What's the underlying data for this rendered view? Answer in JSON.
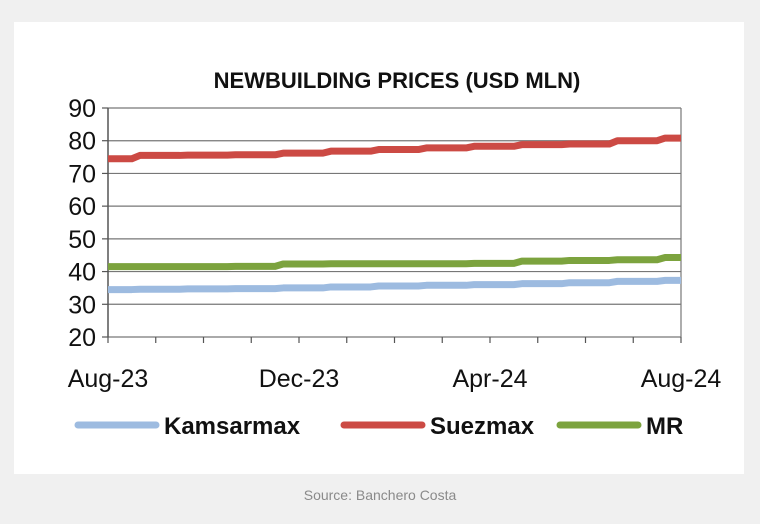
{
  "chart_data": {
    "type": "line",
    "title": "NEWBUILDING PRICES (USD MLN)",
    "xlabel": "",
    "ylabel": "",
    "ylim": [
      20,
      90
    ],
    "y_ticks": [
      "90",
      "80",
      "70",
      "60",
      "50",
      "40",
      "30",
      "20"
    ],
    "x_tick_labels": [
      "Aug-23",
      "Dec-23",
      "Apr-24",
      "Aug-24"
    ],
    "x": [
      "Aug-23",
      "Sep-23",
      "Oct-23",
      "Nov-23",
      "Dec-23",
      "Jan-24",
      "Feb-24",
      "Mar-24",
      "Apr-24",
      "May-24",
      "Jun-24",
      "Jul-24",
      "Aug-24"
    ],
    "grid": true,
    "legend_position": "bottom",
    "series": [
      {
        "name": "Kamsarmax",
        "color": "#9dbbe0",
        "values": [
          34.5,
          34.6,
          34.7,
          34.8,
          35.0,
          35.3,
          35.6,
          35.8,
          36.0,
          36.3,
          36.6,
          37.0,
          37.3
        ]
      },
      {
        "name": "Suezmax",
        "color": "#cc4a44",
        "values": [
          74.5,
          75.5,
          75.6,
          75.7,
          76.2,
          76.8,
          77.3,
          77.8,
          78.3,
          78.8,
          79.0,
          80.0,
          80.8
        ]
      },
      {
        "name": "MR",
        "color": "#7ca33e",
        "values": [
          41.5,
          41.5,
          41.5,
          41.6,
          42.3,
          42.4,
          42.4,
          42.4,
          42.5,
          43.2,
          43.4,
          43.6,
          44.3
        ]
      }
    ]
  },
  "source_text": "Source: Banchero Costa"
}
